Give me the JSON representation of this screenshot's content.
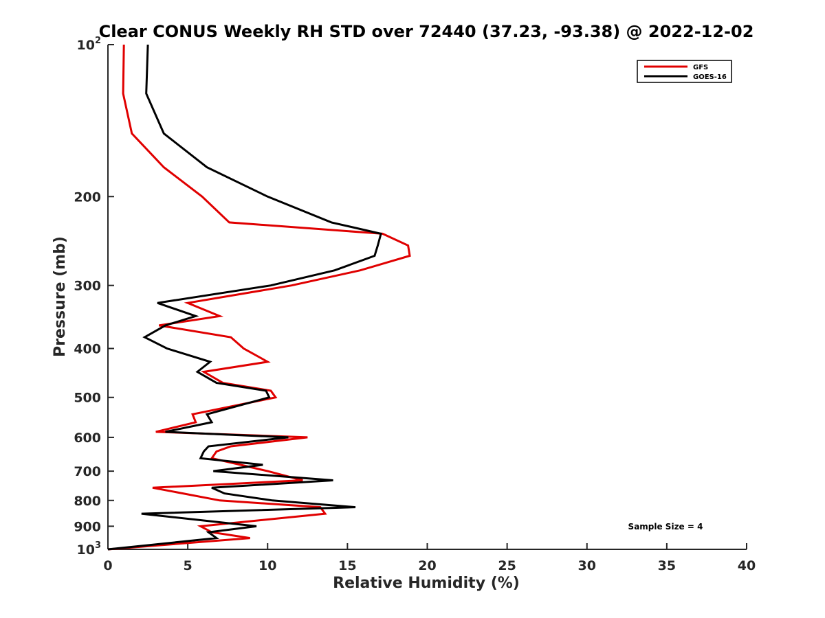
{
  "chart_data": {
    "type": "line",
    "title": "Clear CONUS Weekly RH STD over 72440 (37.23, -93.38) @ 2022-12-02",
    "xlabel": "Relative Humidity (%)",
    "ylabel": "Pressure (mb)",
    "xlim": [
      0,
      40
    ],
    "ylim": [
      100,
      1000
    ],
    "y_scale": "log",
    "y_reversed": true,
    "x_ticks": [
      0,
      5,
      10,
      15,
      20,
      25,
      30,
      35,
      40
    ],
    "y_ticks": [
      {
        "value": 100,
        "base": "10",
        "exp": "2"
      },
      {
        "value": 200,
        "label": "200"
      },
      {
        "value": 300,
        "label": "300"
      },
      {
        "value": 400,
        "label": "400"
      },
      {
        "value": 500,
        "label": "500"
      },
      {
        "value": 600,
        "label": "600"
      },
      {
        "value": 700,
        "label": "700"
      },
      {
        "value": 800,
        "label": "800"
      },
      {
        "value": 900,
        "label": "900"
      },
      {
        "value": 1000,
        "base": "10",
        "exp": "3"
      }
    ],
    "grid": false,
    "legend_position": "top-right",
    "annotation": "Sample Size = 4",
    "series": [
      {
        "name": "GFS",
        "color": "#e00000",
        "points": [
          [
            1.0,
            100
          ],
          [
            0.95,
            125
          ],
          [
            1.5,
            150
          ],
          [
            3.5,
            175
          ],
          [
            5.9,
            200
          ],
          [
            7.6,
            225
          ],
          [
            17.2,
            237
          ],
          [
            18.8,
            250
          ],
          [
            18.9,
            262
          ],
          [
            15.8,
            280
          ],
          [
            11.5,
            300
          ],
          [
            5.0,
            325
          ],
          [
            7.0,
            345
          ],
          [
            3.2,
            360
          ],
          [
            7.7,
            380
          ],
          [
            8.5,
            400
          ],
          [
            10.0,
            425
          ],
          [
            6.0,
            445
          ],
          [
            7.2,
            468
          ],
          [
            10.2,
            485
          ],
          [
            10.5,
            500
          ],
          [
            5.3,
            540
          ],
          [
            5.5,
            560
          ],
          [
            3.0,
            585
          ],
          [
            12.5,
            600
          ],
          [
            7.7,
            625
          ],
          [
            6.8,
            640
          ],
          [
            6.5,
            660
          ],
          [
            8.3,
            680
          ],
          [
            10.0,
            700
          ],
          [
            12.2,
            730
          ],
          [
            2.8,
            755
          ],
          [
            4.7,
            775
          ],
          [
            7.0,
            800
          ],
          [
            13.3,
            825
          ],
          [
            13.6,
            850
          ],
          [
            5.8,
            900
          ],
          [
            6.5,
            925
          ],
          [
            8.9,
            950
          ],
          [
            0.0,
            1000
          ]
        ]
      },
      {
        "name": "GOES-16",
        "color": "#000000",
        "points": [
          [
            2.5,
            100
          ],
          [
            2.4,
            125
          ],
          [
            3.5,
            150
          ],
          [
            6.2,
            175
          ],
          [
            10.0,
            200
          ],
          [
            14.0,
            225
          ],
          [
            17.1,
            237
          ],
          [
            16.9,
            250
          ],
          [
            16.7,
            262
          ],
          [
            14.2,
            280
          ],
          [
            10.2,
            300
          ],
          [
            3.1,
            325
          ],
          [
            5.5,
            345
          ],
          [
            3.6,
            360
          ],
          [
            2.3,
            380
          ],
          [
            3.7,
            400
          ],
          [
            6.4,
            425
          ],
          [
            5.6,
            445
          ],
          [
            6.8,
            468
          ],
          [
            9.9,
            485
          ],
          [
            10.1,
            500
          ],
          [
            6.2,
            540
          ],
          [
            6.5,
            560
          ],
          [
            3.6,
            585
          ],
          [
            11.3,
            600
          ],
          [
            6.3,
            625
          ],
          [
            6.0,
            640
          ],
          [
            5.8,
            660
          ],
          [
            9.7,
            680
          ],
          [
            6.6,
            700
          ],
          [
            14.1,
            730
          ],
          [
            6.5,
            755
          ],
          [
            7.3,
            775
          ],
          [
            10.3,
            800
          ],
          [
            15.5,
            825
          ],
          [
            2.1,
            850
          ],
          [
            9.3,
            900
          ],
          [
            6.3,
            925
          ],
          [
            6.8,
            950
          ],
          [
            0.0,
            1000
          ]
        ]
      }
    ]
  }
}
